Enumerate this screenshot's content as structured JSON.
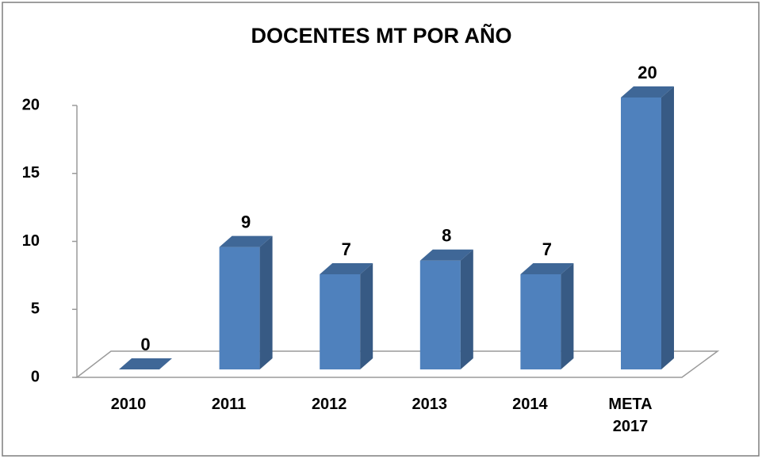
{
  "chart_data": {
    "type": "bar",
    "title": "DOCENTES MT POR AÑO",
    "categories": [
      "2010",
      "2011",
      "2012",
      "2013",
      "2014",
      "META 2017"
    ],
    "values": [
      0,
      9,
      7,
      8,
      7,
      20
    ],
    "color": "#4f81bd",
    "ylim": [
      0,
      20
    ],
    "yticks": [
      0,
      5,
      10,
      15,
      20
    ],
    "grid": false
  }
}
